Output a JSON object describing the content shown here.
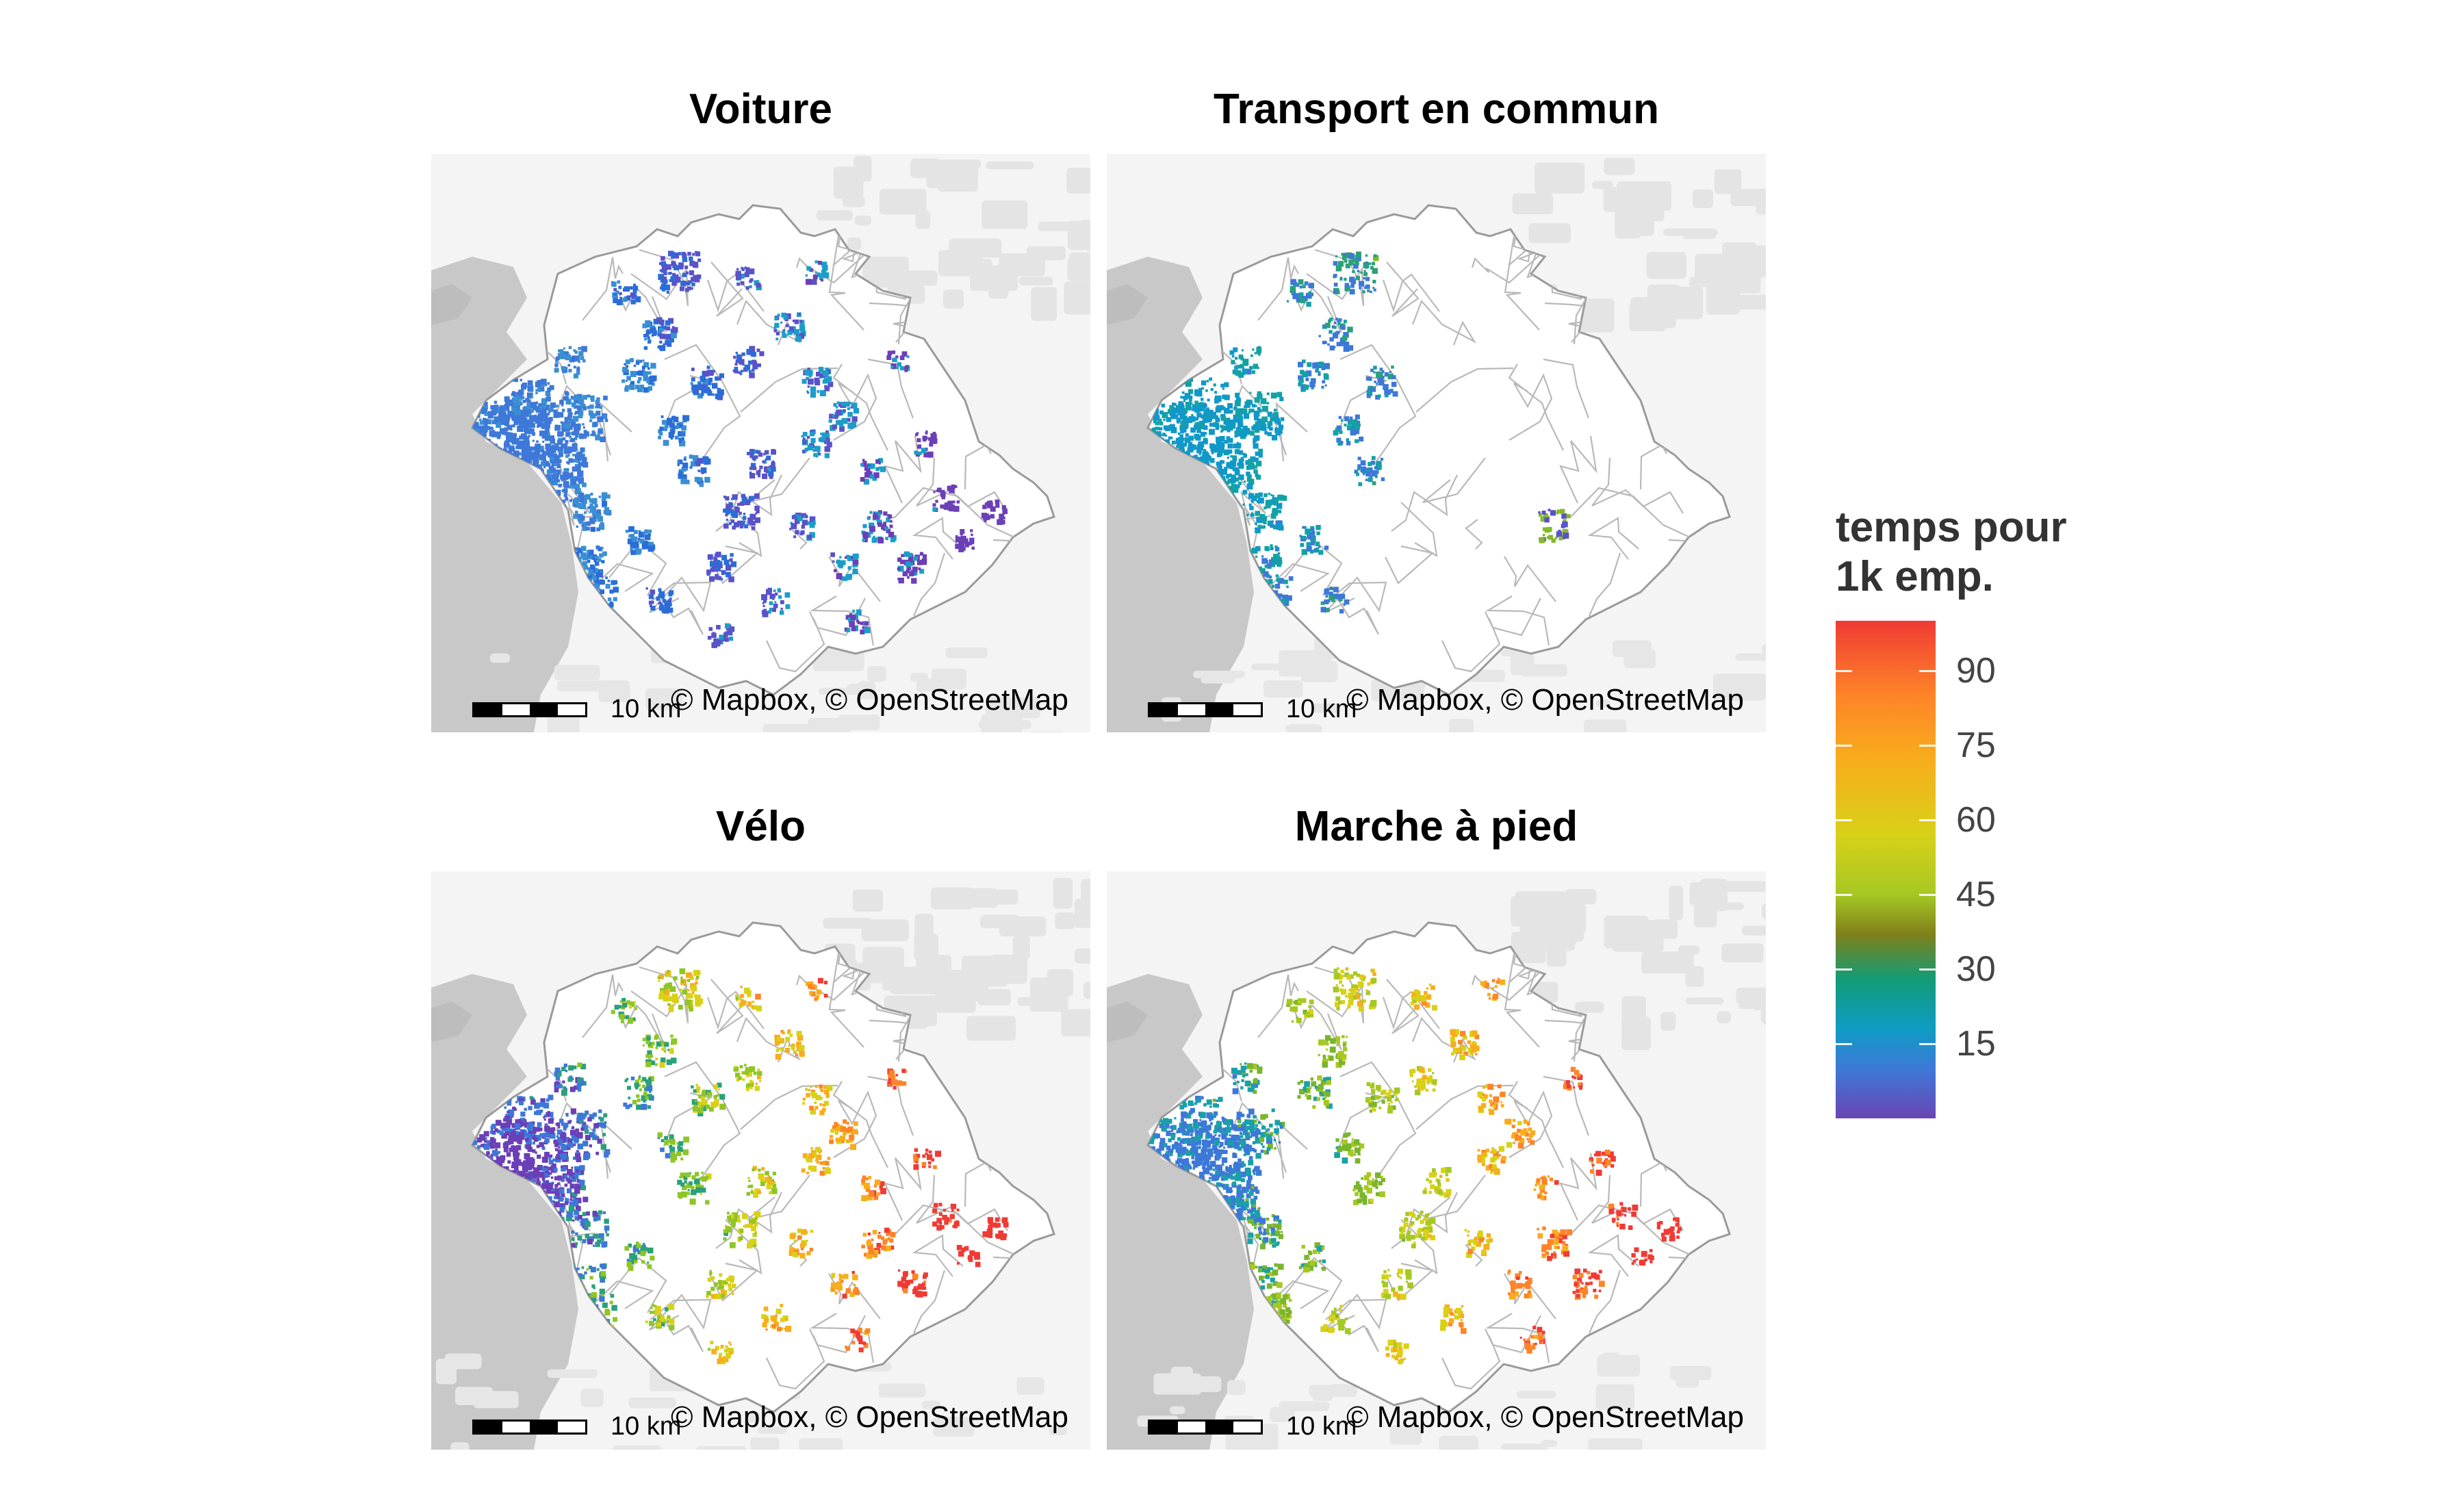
{
  "panels": [
    {
      "title": "Voiture",
      "attribution": "© Mapbox, © OpenStreetMap",
      "scale_label": "10 km",
      "dot_colors": [
        "#3e78d8",
        "#3a8fd3",
        "#2a6dd8",
        "#5a52c8",
        "#1c9dc9",
        "#6b3fb7"
      ]
    },
    {
      "title": "Transport en commun",
      "attribution": "© Mapbox, © OpenStreetMap",
      "scale_label": "10 km",
      "dot_colors": [
        "#1098c8",
        "#13a2a4",
        "#3d78d8",
        "#2aa07b",
        "#84b92b",
        "#5a52c8"
      ]
    },
    {
      "title": "Vélo",
      "attribution": "© Mapbox, © OpenStreetMap",
      "scale_label": "10 km",
      "dot_colors": [
        "#f03a34",
        "#fe8428",
        "#f8ad1c",
        "#d8d118",
        "#8fc526",
        "#2aa07b",
        "#3d78d8",
        "#6b3fb7"
      ]
    },
    {
      "title": "Marche à pied",
      "attribution": "© Mapbox, © OpenStreetMap",
      "scale_label": "10 km",
      "dot_colors": [
        "#f03a34",
        "#fe8428",
        "#f8ad1c",
        "#d8d118",
        "#a6c823",
        "#7ab52c",
        "#1aa0a8",
        "#3d78d8"
      ]
    }
  ],
  "legend": {
    "title": "temps pour\n1k emp.",
    "ticks": [
      "90",
      "75",
      "60",
      "45",
      "30",
      "15"
    ],
    "tick_values": [
      90,
      75,
      60,
      45,
      30,
      15
    ],
    "range": [
      0,
      100
    ],
    "colors": [
      "#f03a34",
      "#fe8428",
      "#f8ad1c",
      "#d8d118",
      "#a6c823",
      "#80801a",
      "#129c76",
      "#0e9cc4",
      "#3d79d8",
      "#6a45b4"
    ]
  }
}
